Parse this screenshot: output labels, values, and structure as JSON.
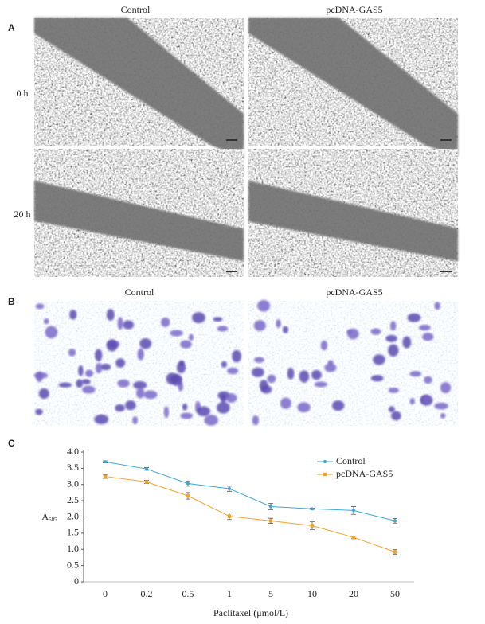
{
  "figure": {
    "panel_a": {
      "label": "A",
      "columns": [
        "Control",
        "pcDNA-GAS5"
      ],
      "rows": [
        "0 h",
        "20 h"
      ]
    },
    "panel_b": {
      "label": "B",
      "columns": [
        "Control",
        "pcDNA-GAS5"
      ]
    },
    "panel_c": {
      "label": "C"
    }
  },
  "chart_data": {
    "type": "line",
    "x_label": "Paclitaxel (μmol/L)",
    "y_label": "A",
    "y_label_sub": "585",
    "categories": [
      "0",
      "0.2",
      "0.5",
      "1",
      "5",
      "10",
      "20",
      "50"
    ],
    "series": [
      {
        "name": "Control",
        "color": "#3aa7d8",
        "values": [
          3.7,
          3.48,
          3.03,
          2.87,
          2.32,
          2.25,
          2.2,
          1.88
        ],
        "errors": [
          0.03,
          0.04,
          0.08,
          0.08,
          0.1,
          0.02,
          0.12,
          0.07
        ]
      },
      {
        "name": "pcDNA-GAS5",
        "color": "#eea32c",
        "values": [
          3.25,
          3.08,
          2.65,
          2.02,
          1.88,
          1.73,
          1.37,
          0.92
        ],
        "errors": [
          0.06,
          0.05,
          0.1,
          0.1,
          0.08,
          0.12,
          0.04,
          0.07
        ]
      }
    ],
    "ylim": [
      0,
      4.0
    ],
    "yticks": [
      0,
      0.5,
      {
        "value": 1.0,
        "label": "1.0"
      },
      1.5,
      {
        "value": 2.0,
        "label": "2.0"
      },
      2.5,
      {
        "value": 3.0,
        "label": "3.0"
      },
      3.5,
      {
        "value": 4.0,
        "label": "4.0"
      }
    ],
    "legend": "upper right"
  }
}
